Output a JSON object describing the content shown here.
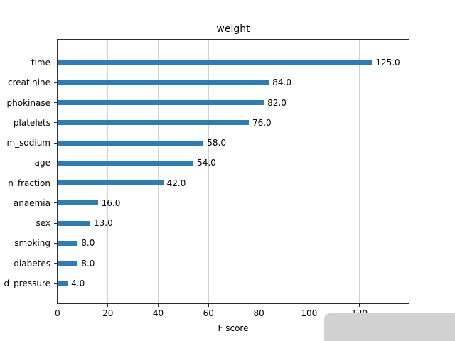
{
  "chart_data": {
    "type": "bar",
    "orientation": "horizontal",
    "title": "weight",
    "xlabel": "F score",
    "ylabel": "",
    "categories": [
      "time",
      "creatinine",
      "phokinase",
      "platelets",
      "m_sodium",
      "age",
      "n_fraction",
      "anaemia",
      "sex",
      "smoking",
      "diabetes",
      "d_pressure"
    ],
    "values": [
      125,
      84,
      82,
      76,
      58,
      54,
      42,
      16,
      13,
      8,
      8,
      4
    ],
    "value_labels": [
      "125.0",
      "84.0",
      "82.0",
      "76.0",
      "58.0",
      "54.0",
      "42.0",
      "16.0",
      "13.0",
      "8.0",
      "8.0",
      "4.0"
    ],
    "xticks": [
      0,
      20,
      40,
      60,
      80,
      100,
      120
    ],
    "xlim": [
      0,
      139.6
    ],
    "grid": true,
    "legend": "none",
    "bar_color": "#2e7bb5",
    "grid_color": "#d0d0d0",
    "spine_color": "#2b2b2b"
  }
}
